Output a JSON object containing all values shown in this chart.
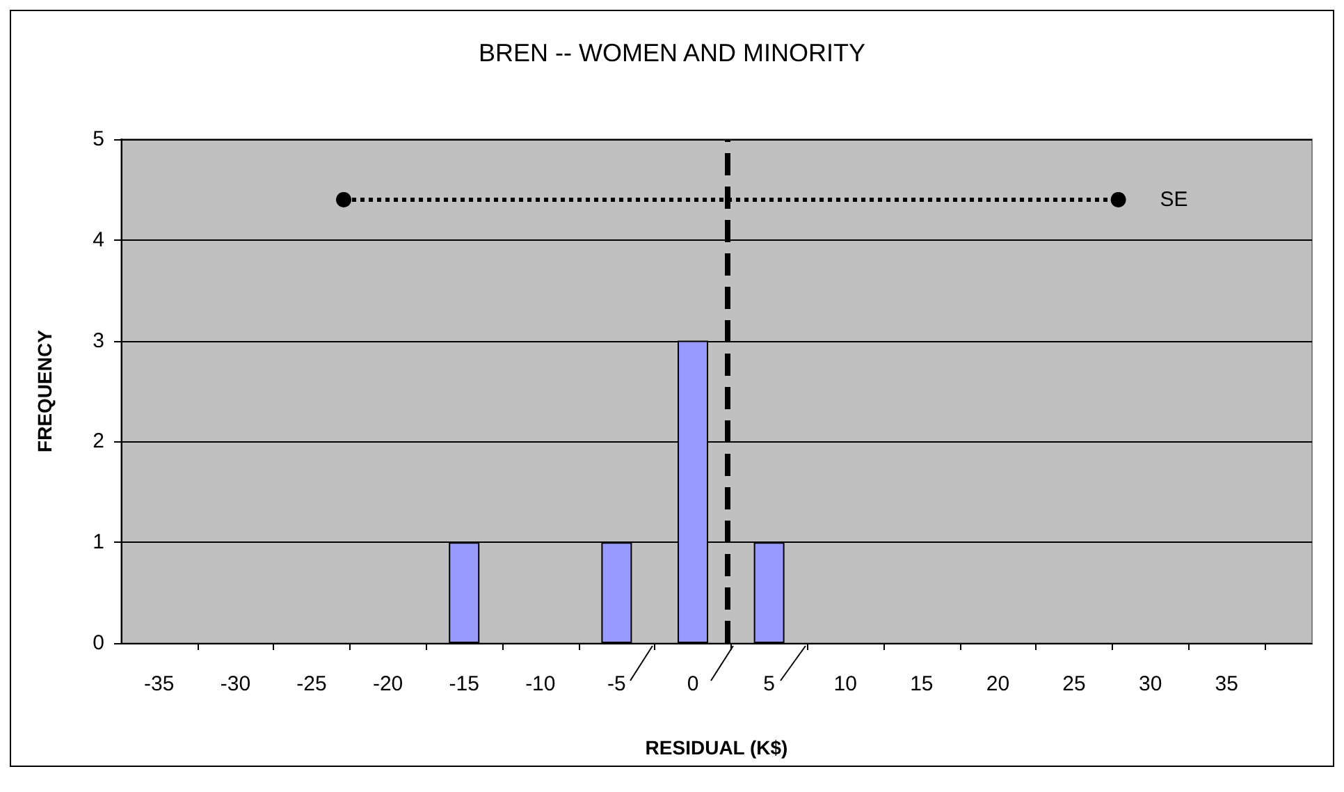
{
  "chart_data": {
    "type": "bar",
    "title": "BREN -- WOMEN AND MINORITY",
    "xlabel": "RESIDUAL (K$)",
    "ylabel": "FREQUENCY",
    "x": [
      -15,
      -5,
      0,
      5
    ],
    "series": [
      {
        "color": "#9999ff",
        "values": [
          1,
          1,
          3,
          1
        ]
      },
      {
        "type": "line",
        "name": "SE",
        "color": "#000000",
        "x": [
          -22.9,
          27.9
        ],
        "values": [
          4.4,
          4.4
        ],
        "marker": "circle",
        "line_style": "dotted"
      }
    ],
    "xlim": [
      -37.5,
      40.6
    ],
    "xticks": [
      -35,
      -30,
      -25,
      -20,
      -15,
      -10,
      -5,
      0,
      5,
      10,
      15,
      20,
      25,
      30,
      35,
      {
        "value": -32.5,
        "label": null
      },
      {
        "value": -27.5,
        "label": null
      },
      {
        "value": -22.5,
        "label": null
      },
      {
        "value": -17.5,
        "label": null
      },
      {
        "value": -12.5,
        "label": null
      },
      {
        "value": -7.5,
        "label": null
      },
      {
        "value": -2.5,
        "label": null
      },
      {
        "value": 2.5,
        "label": null
      },
      {
        "value": 7.5,
        "label": null
      },
      {
        "value": 12.5,
        "label": null
      },
      {
        "value": 17.5,
        "label": null
      },
      {
        "value": 22.5,
        "label": null
      },
      {
        "value": 27.5,
        "label": null
      },
      {
        "value": 32.5,
        "label": null
      },
      {
        "value": 37.5,
        "label": null
      }
    ],
    "ylim": [
      0,
      5
    ],
    "yticks": [
      0,
      1,
      2,
      3,
      4,
      5
    ],
    "grid": "y",
    "legend": false,
    "ref_lines": [
      {
        "axis": "x",
        "value": 2.3,
        "color": "#000000",
        "line_style": "dashed"
      }
    ]
  }
}
